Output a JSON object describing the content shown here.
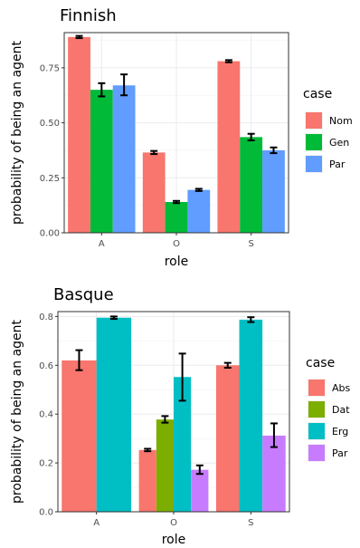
{
  "chart_data": [
    {
      "type": "bar",
      "title": "Finnish",
      "xlabel": "role",
      "ylabel": "probability of being an agent",
      "categories": [
        "A",
        "O",
        "S"
      ],
      "ylim": [
        0,
        0.91
      ],
      "yticks": [
        0.0,
        0.25,
        0.5,
        0.75
      ],
      "ytick_labels": [
        "0.00",
        "0.25",
        "0.50",
        "0.75"
      ],
      "grid": true,
      "legend": {
        "title": "case",
        "position": "right"
      },
      "series": [
        {
          "name": "Nom",
          "color": "#F8766D",
          "values": [
            0.89,
            0.365,
            0.78
          ],
          "err_low": [
            0.885,
            0.358,
            0.775
          ],
          "err_high": [
            0.895,
            0.372,
            0.785
          ]
        },
        {
          "name": "Gen",
          "color": "#00BA38",
          "values": [
            0.65,
            0.14,
            0.435
          ],
          "err_low": [
            0.62,
            0.135,
            0.42
          ],
          "err_high": [
            0.68,
            0.145,
            0.45
          ]
        },
        {
          "name": "Par",
          "color": "#619CFF",
          "values": [
            0.67,
            0.195,
            0.375
          ],
          "err_low": [
            0.625,
            0.19,
            0.362
          ],
          "err_high": [
            0.72,
            0.2,
            0.388
          ]
        }
      ]
    },
    {
      "type": "bar",
      "title": "Basque",
      "xlabel": "role",
      "ylabel": "probability of being an agent",
      "categories": [
        "A",
        "O",
        "S"
      ],
      "ylim": [
        0,
        0.82
      ],
      "yticks": [
        0.0,
        0.2,
        0.4,
        0.6,
        0.8
      ],
      "ytick_labels": [
        "0.0",
        "0.2",
        "0.4",
        "0.6",
        "0.8"
      ],
      "grid": true,
      "legend": {
        "title": "case",
        "position": "right"
      },
      "series": [
        {
          "name": "Abs",
          "color": "#F8766D",
          "values": [
            0.62,
            0.253,
            0.6
          ],
          "err_low": [
            0.58,
            0.248,
            0.59
          ],
          "err_high": [
            0.662,
            0.258,
            0.61
          ]
        },
        {
          "name": "Dat",
          "color": "#7CAE00",
          "values": [
            null,
            0.378,
            null
          ],
          "err_low": [
            null,
            0.365,
            null
          ],
          "err_high": [
            null,
            0.392,
            null
          ]
        },
        {
          "name": "Erg",
          "color": "#00BFC4",
          "values": [
            0.795,
            0.552,
            0.787
          ],
          "err_low": [
            0.79,
            0.455,
            0.777
          ],
          "err_high": [
            0.8,
            0.648,
            0.797
          ]
        },
        {
          "name": "Par",
          "color": "#C77CFF",
          "values": [
            null,
            0.172,
            0.312
          ],
          "err_low": [
            null,
            0.155,
            0.265
          ],
          "err_high": [
            null,
            0.19,
            0.362
          ]
        }
      ]
    }
  ]
}
